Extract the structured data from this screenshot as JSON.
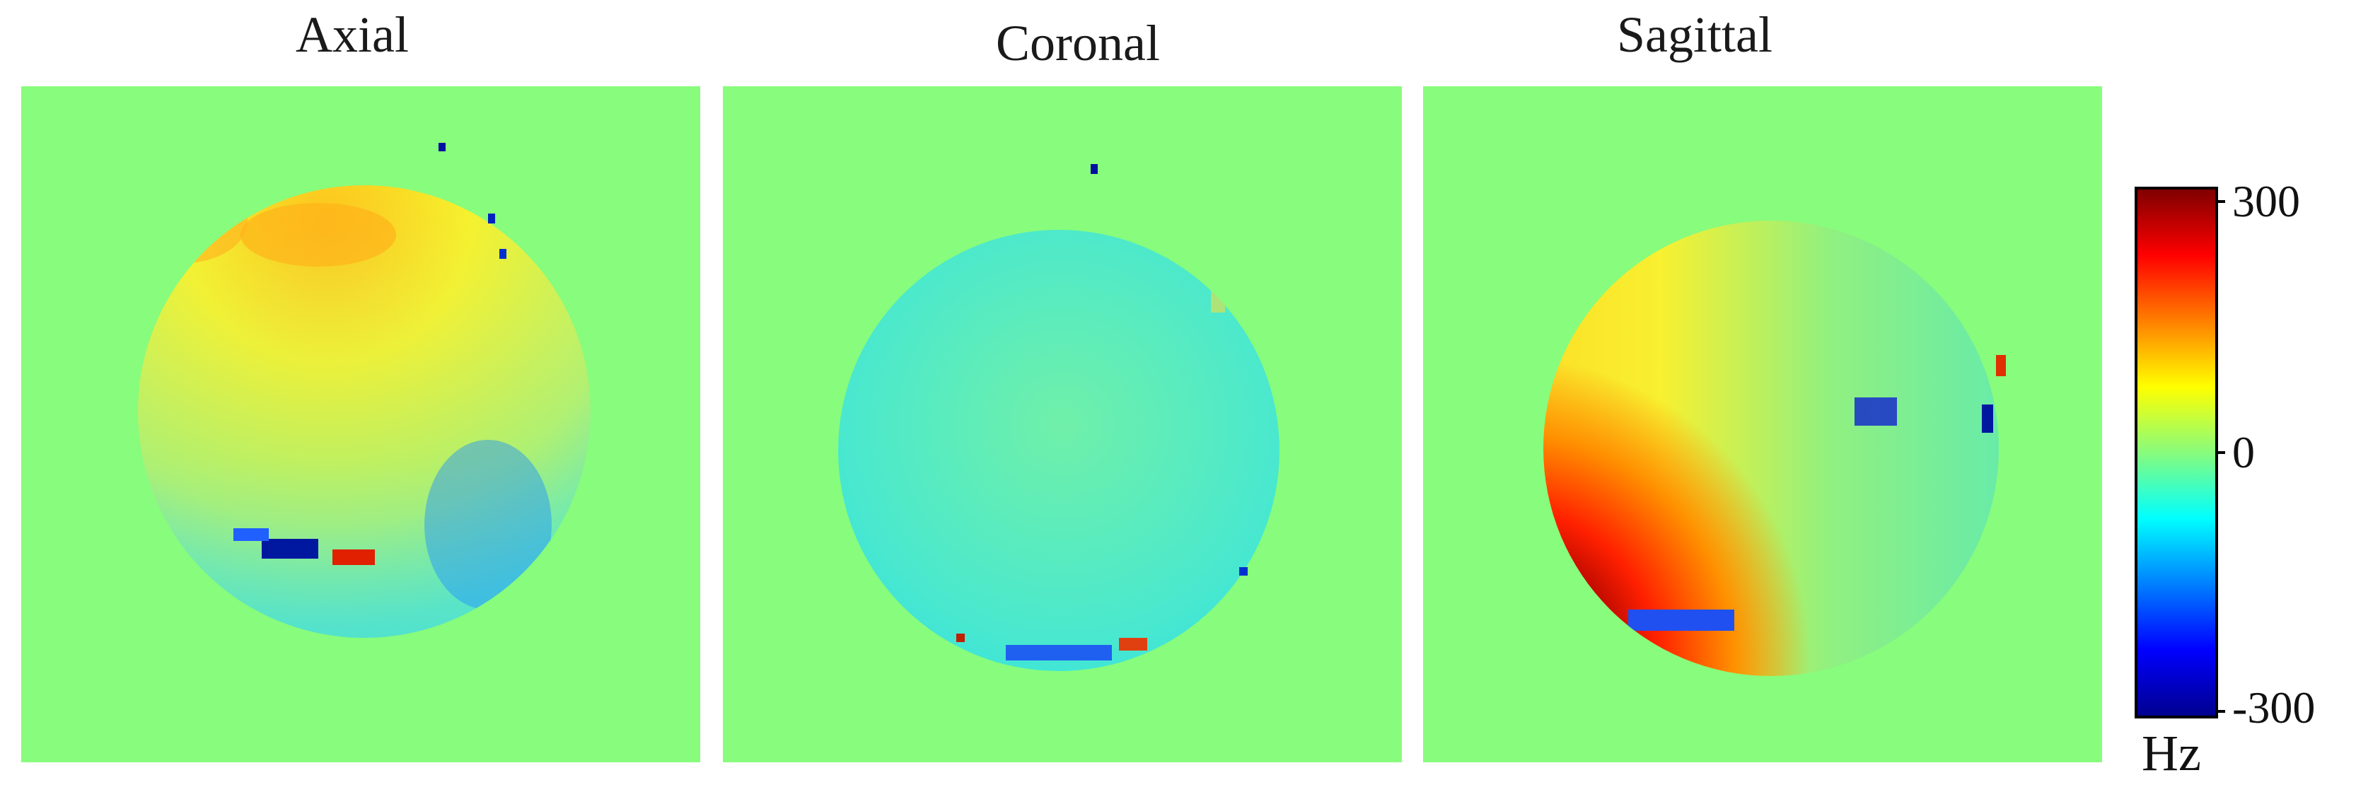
{
  "panels": [
    {
      "title": "Axial"
    },
    {
      "title": "Coronal"
    },
    {
      "title": "Sagittal"
    }
  ],
  "colorbar": {
    "max_label": "300",
    "zero_label": "0",
    "min_label": "-300",
    "unit": "Hz",
    "colormap": "jet",
    "range": [
      -300,
      300
    ]
  },
  "colors": {
    "background": "#88fc7c",
    "jet_dark_red": "#800000",
    "jet_red": "#ff0000",
    "jet_yellow": "#ffff00",
    "jet_cyan": "#00ffff",
    "jet_blue": "#0000ff",
    "jet_dark_blue": "#00008f"
  }
}
